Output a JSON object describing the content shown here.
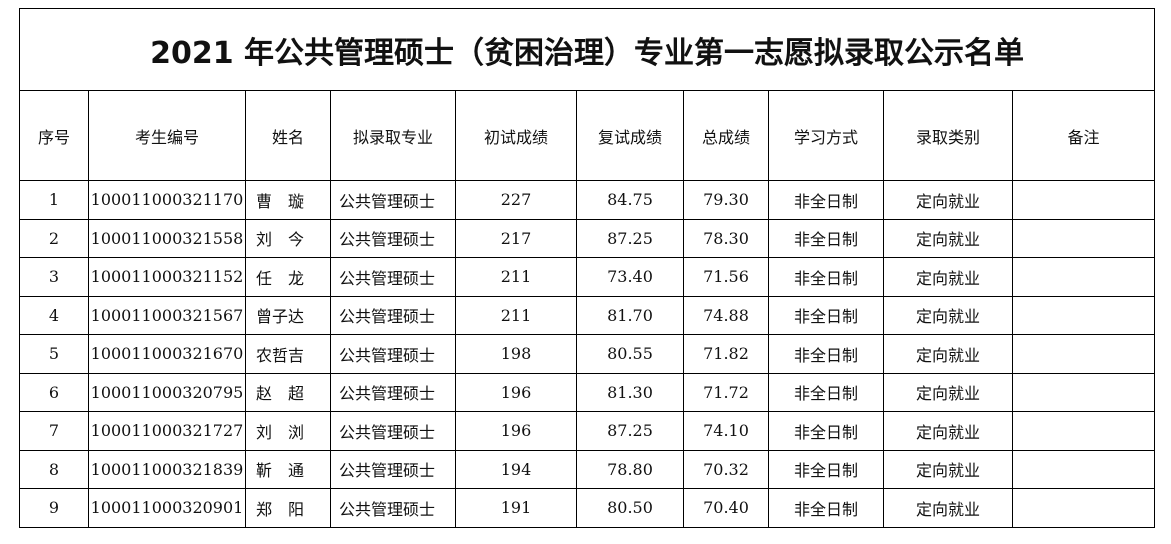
{
  "title": "2021 年公共管理硕士（贫困治理）专业第一志愿拟录取公示名单",
  "headers": [
    "序号",
    "考生编号",
    "姓名",
    "拟录取专业",
    "初试成绩",
    "复试成绩",
    "总成绩",
    "学习方式",
    "录取类别",
    "备注"
  ],
  "rows": [
    {
      "no": "1",
      "id": "100011000321170",
      "name": "曹　璇",
      "major": "公共管理硕士",
      "initial": "227",
      "retest": "84.75",
      "total": "79.30",
      "mode": "非全日制",
      "type": "定向就业",
      "note": ""
    },
    {
      "no": "2",
      "id": "100011000321558",
      "name": "刘　今",
      "major": "公共管理硕士",
      "initial": "217",
      "retest": "87.25",
      "total": "78.30",
      "mode": "非全日制",
      "type": "定向就业",
      "note": ""
    },
    {
      "no": "3",
      "id": "100011000321152",
      "name": "任　龙",
      "major": "公共管理硕士",
      "initial": "211",
      "retest": "73.40",
      "total": "71.56",
      "mode": "非全日制",
      "type": "定向就业",
      "note": ""
    },
    {
      "no": "4",
      "id": "100011000321567",
      "name": "曾子达",
      "major": "公共管理硕士",
      "initial": "211",
      "retest": "81.70",
      "total": "74.88",
      "mode": "非全日制",
      "type": "定向就业",
      "note": ""
    },
    {
      "no": "5",
      "id": "100011000321670",
      "name": "农哲吉",
      "major": "公共管理硕士",
      "initial": "198",
      "retest": "80.55",
      "total": "71.82",
      "mode": "非全日制",
      "type": "定向就业",
      "note": ""
    },
    {
      "no": "6",
      "id": "100011000320795",
      "name": "赵　超",
      "major": "公共管理硕士",
      "initial": "196",
      "retest": "81.30",
      "total": "71.72",
      "mode": "非全日制",
      "type": "定向就业",
      "note": ""
    },
    {
      "no": "7",
      "id": "100011000321727",
      "name": "刘　浏",
      "major": "公共管理硕士",
      "initial": "196",
      "retest": "87.25",
      "total": "74.10",
      "mode": "非全日制",
      "type": "定向就业",
      "note": ""
    },
    {
      "no": "8",
      "id": "100011000321839",
      "name": "靳　通",
      "major": "公共管理硕士",
      "initial": "194",
      "retest": "78.80",
      "total": "70.32",
      "mode": "非全日制",
      "type": "定向就业",
      "note": ""
    },
    {
      "no": "9",
      "id": "100011000320901",
      "name": "郑　阳",
      "major": "公共管理硕士",
      "initial": "191",
      "retest": "80.50",
      "total": "70.40",
      "mode": "非全日制",
      "type": "定向就业",
      "note": ""
    }
  ]
}
